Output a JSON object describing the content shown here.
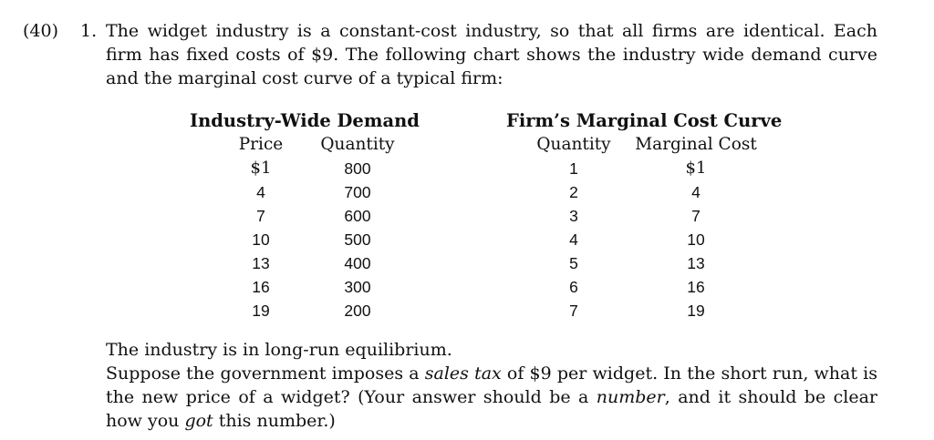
{
  "question": {
    "points": "(40)",
    "number": "1.",
    "intro": "The widget industry is a constant-cost industry, so that all firms are identical. Each firm has fixed costs of $9. The following chart shows the industry wide demand curve and the marginal cost curve of a typical firm:"
  },
  "demand_table": {
    "title": "Industry-Wide Demand",
    "headers": [
      "Price",
      "Quantity"
    ],
    "rows": [
      [
        "$1",
        "800"
      ],
      [
        "4",
        "700"
      ],
      [
        "7",
        "600"
      ],
      [
        "10",
        "500"
      ],
      [
        "13",
        "400"
      ],
      [
        "16",
        "300"
      ],
      [
        "19",
        "200"
      ]
    ]
  },
  "mc_table": {
    "title": "Firm’s Marginal Cost Curve",
    "headers": [
      "Quantity",
      "Marginal Cost"
    ],
    "rows": [
      [
        "1",
        "$1"
      ],
      [
        "2",
        "4"
      ],
      [
        "3",
        "7"
      ],
      [
        "4",
        "10"
      ],
      [
        "5",
        "13"
      ],
      [
        "6",
        "16"
      ],
      [
        "7",
        "19"
      ]
    ]
  },
  "conclusion": {
    "line1": "The industry is in long-run equilibrium.",
    "p2_a": "Suppose the government imposes a ",
    "p2_em1": "sales tax",
    "p2_b": " of $9 per widget. In the short run, what is the new price of a widget? (Your answer should be a ",
    "p2_em2": "number",
    "p2_c": ", and it should be clear how you ",
    "p2_em3": "got",
    "p2_d": " this number.)"
  }
}
